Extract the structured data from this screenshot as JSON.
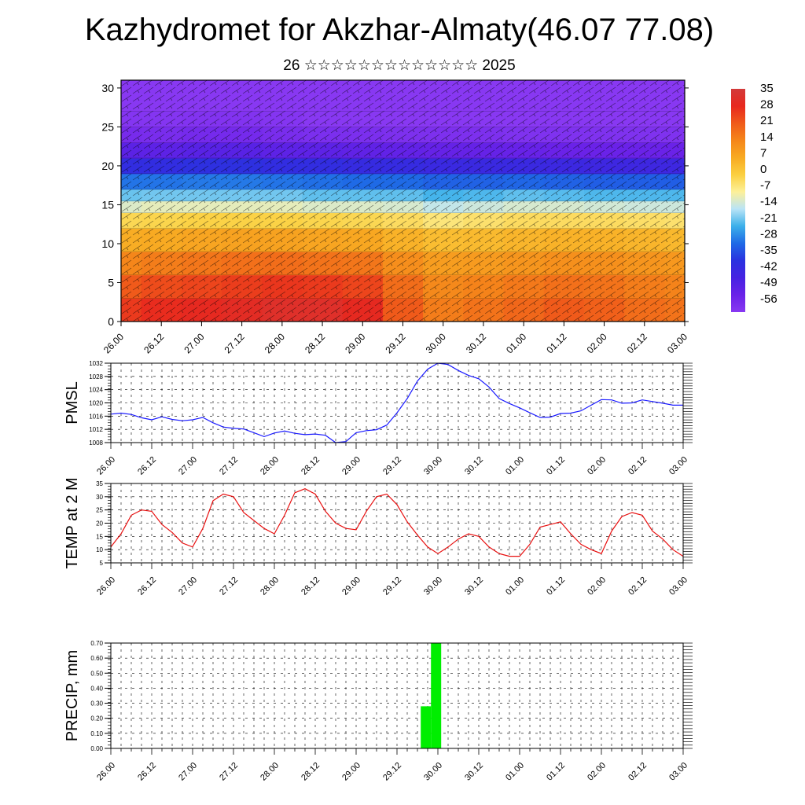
{
  "page": {
    "title": "Kazhydromet for Akzhar-Almaty(46.07 77.08)",
    "subtitle": "26 ☆☆☆☆☆☆☆☆☆☆☆☆☆ 2025"
  },
  "colors": {
    "pmsl_line": "#1a1aff",
    "temp_line": "#e81010",
    "precip_bar": "#00ee00",
    "axis": "#000000"
  },
  "chart_data": [
    {
      "id": "cross_section",
      "type": "heatmap",
      "title": "",
      "xlabel": "",
      "ylabel": "",
      "x_ticks": [
        "26.00",
        "26.12",
        "27.00",
        "27.12",
        "28.00",
        "28.12",
        "29.00",
        "29.12",
        "30.00",
        "30.12",
        "01.00",
        "01.12",
        "02.00",
        "02.12",
        "03.00"
      ],
      "y_ticks": [
        "0",
        "5",
        "10",
        "15",
        "20",
        "25",
        "30"
      ],
      "ylim": [
        0,
        31
      ],
      "colorbar_labels": [
        "35",
        "28",
        "21",
        "14",
        "7",
        "0",
        "-7",
        "-14",
        "-21",
        "-28",
        "-35",
        "-42",
        "-49",
        "-56"
      ],
      "colorbar_colors": [
        "#d23a3a",
        "#e8281e",
        "#f05a1a",
        "#f5861a",
        "#f8aa22",
        "#fbd040",
        "#fdf09a",
        "#b9e4f6",
        "#3cb0ea",
        "#1f6ae6",
        "#2a32e0",
        "#4622e2",
        "#6a22e8",
        "#8838f2"
      ],
      "levels": [
        {
          "level": 0,
          "temps": [
            27,
            29,
            30,
            31,
            33,
            33,
            30,
            22,
            16,
            18,
            20,
            22,
            21,
            19,
            18
          ]
        },
        {
          "level": 3,
          "temps": [
            24,
            26,
            27,
            28,
            29,
            29,
            27,
            20,
            15,
            16,
            18,
            20,
            19,
            17,
            16
          ]
        },
        {
          "level": 6,
          "temps": [
            18,
            20,
            21,
            22,
            23,
            22,
            21,
            16,
            12,
            13,
            14,
            15,
            15,
            14,
            13
          ]
        },
        {
          "level": 9,
          "temps": [
            10,
            11,
            12,
            13,
            13,
            12,
            12,
            9,
            7,
            7,
            8,
            9,
            9,
            8,
            8
          ]
        },
        {
          "level": 12,
          "temps": [
            3,
            3,
            4,
            4,
            4,
            4,
            3,
            2,
            0,
            1,
            2,
            2,
            2,
            2,
            1
          ]
        },
        {
          "level": 14,
          "temps": [
            -6,
            -5,
            -5,
            -5,
            -5,
            -6,
            -6,
            -7,
            -9,
            -8,
            -7,
            -7,
            -7,
            -8,
            -8
          ]
        },
        {
          "level": 15.5,
          "temps": [
            -15,
            -14,
            -14,
            -14,
            -14,
            -15,
            -15,
            -15,
            -17,
            -16,
            -15,
            -15,
            -16,
            -16,
            -16
          ]
        },
        {
          "level": 17,
          "temps": [
            -22,
            -22,
            -22,
            -22,
            -22,
            -23,
            -23,
            -23,
            -24,
            -24,
            -23,
            -24,
            -24,
            -24,
            -24
          ]
        },
        {
          "level": 19,
          "temps": [
            -32,
            -32,
            -31,
            -31,
            -32,
            -32,
            -33,
            -33,
            -34,
            -34,
            -34,
            -34,
            -35,
            -35,
            -35
          ]
        },
        {
          "level": 21,
          "temps": [
            -42,
            -42,
            -41,
            -41,
            -42,
            -42,
            -43,
            -43,
            -44,
            -44,
            -44,
            -45,
            -45,
            -45,
            -45
          ]
        },
        {
          "level": 23,
          "temps": [
            -50,
            -51,
            -50,
            -50,
            -51,
            -51,
            -51,
            -52,
            -52,
            -52,
            -53,
            -53,
            -53,
            -53,
            -53
          ]
        },
        {
          "level": 25,
          "temps": [
            -54,
            -54,
            -53,
            -53,
            -54,
            -55,
            -55,
            -55,
            -55,
            -55,
            -55,
            -55,
            -55,
            -55,
            -55
          ]
        },
        {
          "level": 27,
          "temps": [
            -56,
            -56,
            -56,
            -56,
            -56,
            -57,
            -57,
            -57,
            -57,
            -57,
            -57,
            -57,
            -57,
            -57,
            -57
          ]
        },
        {
          "level": 31,
          "temps": [
            -58,
            -58,
            -58,
            -58,
            -58,
            -58,
            -58,
            -58,
            -58,
            -58,
            -58,
            -58,
            -58,
            -58,
            -58
          ]
        }
      ]
    },
    {
      "id": "pmsl",
      "type": "line",
      "ylabel": "PMSL",
      "x_ticks": [
        "26.00",
        "26.12",
        "27.00",
        "27.12",
        "28.00",
        "28.12",
        "29.00",
        "29.12",
        "30.00",
        "30.12",
        "01.00",
        "01.12",
        "02.00",
        "02.12",
        "03.00"
      ],
      "y_ticks": [
        "1008",
        "1012",
        "1016",
        "1020",
        "1024",
        "1028",
        "1032"
      ],
      "ylim": [
        1008,
        1032
      ],
      "xlim": [
        0,
        14
      ],
      "series": [
        {
          "x": [
            0,
            0.25,
            0.5,
            0.75,
            1,
            1.25,
            1.5,
            1.75,
            2,
            2.25,
            2.5,
            2.75,
            3,
            3.25,
            3.5,
            3.75,
            4,
            4.25,
            4.5,
            4.75,
            5,
            5.25,
            5.5,
            5.75,
            6,
            6.25,
            6.5,
            6.75,
            7,
            7.25,
            7.5,
            7.75,
            8,
            8.25,
            8.5,
            8.75,
            9,
            9.25,
            9.5,
            9.75,
            10,
            10.25,
            10.5,
            10.75,
            11,
            11.25,
            11.5,
            11.75,
            12,
            12.25,
            12.5,
            12.75,
            13,
            13.25,
            13.5,
            13.75,
            14
          ],
          "y": [
            1016.6,
            1016.9,
            1016.5,
            1015.5,
            1014.9,
            1015.8,
            1015.0,
            1014.6,
            1014.9,
            1015.6,
            1014.0,
            1012.7,
            1012.3,
            1012.1,
            1011.0,
            1009.8,
            1010.9,
            1011.5,
            1010.8,
            1010.4,
            1010.6,
            1010.2,
            1008.0,
            1008.3,
            1011.0,
            1011.6,
            1011.9,
            1013.3,
            1017.0,
            1021.3,
            1026.6,
            1030.2,
            1032.0,
            1031.6,
            1029.8,
            1028.3,
            1027.3,
            1024.8,
            1021.3,
            1019.8,
            1018.5,
            1017.0,
            1015.6,
            1015.7,
            1016.8,
            1016.9,
            1017.6,
            1019.3,
            1021.0,
            1020.9,
            1019.9,
            1020.0,
            1020.9,
            1020.4,
            1019.9,
            1019.3,
            1019.3
          ]
        }
      ]
    },
    {
      "id": "temp2m",
      "type": "line",
      "ylabel": "TEMP at 2 M",
      "x_ticks": [
        "26.00",
        "26.12",
        "27.00",
        "27.12",
        "28.00",
        "28.12",
        "29.00",
        "29.12",
        "30.00",
        "30.12",
        "01.00",
        "01.12",
        "02.00",
        "02.12",
        "03.00"
      ],
      "y_ticks": [
        "5",
        "10",
        "15",
        "20",
        "25",
        "30",
        "35"
      ],
      "ylim": [
        5,
        35
      ],
      "xlim": [
        0,
        14
      ],
      "series": [
        {
          "x": [
            0,
            0.25,
            0.5,
            0.75,
            1,
            1.25,
            1.5,
            1.75,
            2,
            2.25,
            2.5,
            2.75,
            3,
            3.25,
            3.5,
            3.75,
            4,
            4.25,
            4.5,
            4.75,
            5,
            5.25,
            5.5,
            5.75,
            6,
            6.25,
            6.5,
            6.75,
            7,
            7.25,
            7.5,
            7.75,
            8,
            8.25,
            8.5,
            8.75,
            9,
            9.25,
            9.5,
            9.75,
            10,
            10.25,
            10.5,
            10.75,
            11,
            11.25,
            11.5,
            11.75,
            12,
            12.25,
            12.5,
            12.75,
            13,
            13.25,
            13.5,
            13.75,
            14
          ],
          "y": [
            11,
            16,
            23,
            25,
            24.5,
            19.5,
            16.5,
            12.5,
            11,
            18,
            28.5,
            31,
            30,
            24,
            21,
            18,
            16,
            23,
            31.5,
            33,
            31,
            24.5,
            20,
            18,
            17.5,
            24.5,
            30,
            31,
            27,
            20.5,
            15.5,
            11,
            8.5,
            11,
            14,
            16,
            15,
            11,
            8.5,
            7.5,
            7.5,
            12,
            18.5,
            19.5,
            20.5,
            16,
            12,
            10,
            8.5,
            17,
            22.5,
            24,
            23,
            17,
            14,
            10,
            7.5
          ]
        }
      ]
    },
    {
      "id": "precip",
      "type": "bar",
      "ylabel": "PRECIP, mm",
      "x_ticks": [
        "26.00",
        "26.12",
        "27.00",
        "27.12",
        "28.00",
        "28.12",
        "29.00",
        "29.12",
        "30.00",
        "30.12",
        "01.00",
        "01.12",
        "02.00",
        "02.12",
        "03.00"
      ],
      "y_ticks": [
        "0.00",
        "0.10",
        "0.20",
        "0.30",
        "0.40",
        "0.50",
        "0.60",
        "0.70"
      ],
      "ylim": [
        0,
        0.7
      ],
      "xlim": [
        0,
        14
      ],
      "bars": [
        {
          "x_start": 7.58,
          "x_end": 7.83,
          "value": 0.28
        },
        {
          "x_start": 7.83,
          "x_end": 8.08,
          "value": 0.7
        }
      ]
    }
  ]
}
